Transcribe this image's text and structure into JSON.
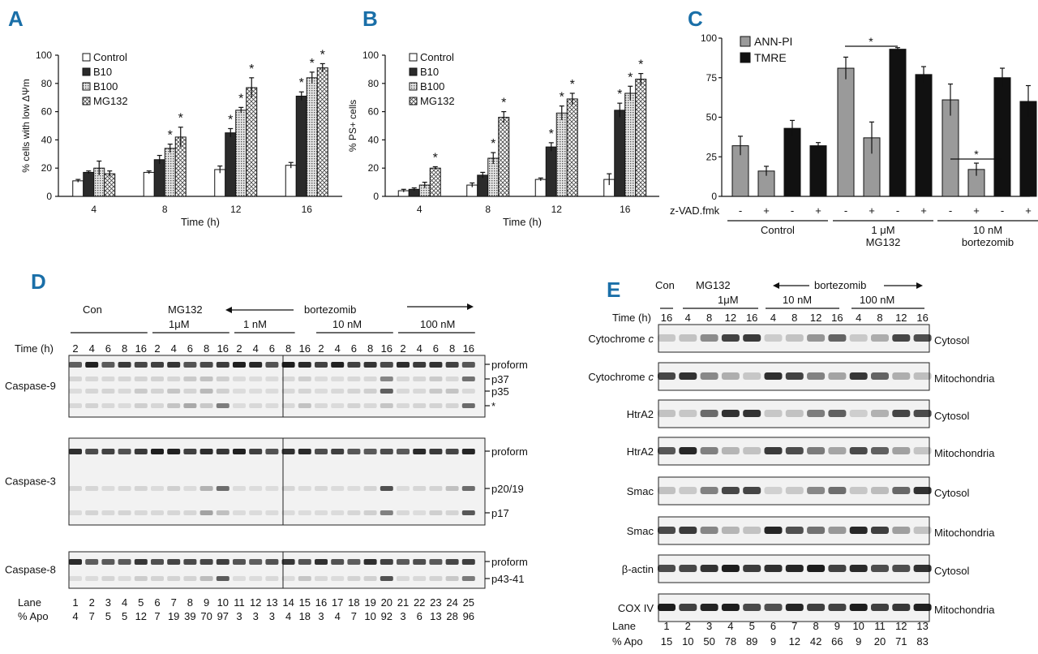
{
  "colors": {
    "panel_label": "#1a6fa8",
    "bar_dark": "#2b2b2b",
    "bar_gray": "#9a9a9a",
    "bar_black": "#111111"
  },
  "panel_labels": [
    "A",
    "B",
    "C",
    "D",
    "E"
  ],
  "chart_data": [
    {
      "id": "A",
      "type": "bar",
      "title": "",
      "xlabel": "Time (h)",
      "ylabel": "% cells with low ΔΨm",
      "ylim": [
        0,
        100
      ],
      "yticks": [
        "0",
        "20",
        "40",
        "60",
        "80",
        "100"
      ],
      "categories": [
        "4",
        "8",
        "12",
        "16"
      ],
      "series": [
        {
          "name": "Control",
          "values": [
            11,
            17,
            19,
            22
          ],
          "errors": [
            1,
            1,
            2.5,
            2
          ]
        },
        {
          "name": "B10",
          "values": [
            17,
            26,
            45,
            71
          ],
          "errors": [
            1,
            3,
            3,
            3
          ]
        },
        {
          "name": "B100",
          "values": [
            20,
            34,
            61,
            84
          ],
          "errors": [
            5,
            3,
            2,
            4
          ]
        },
        {
          "name": "MG132",
          "values": [
            16,
            42,
            77,
            91
          ],
          "errors": [
            2,
            7,
            7,
            3
          ]
        }
      ],
      "significance": [
        [],
        [
          "*",
          "*"
        ],
        [
          "*",
          "*",
          "*"
        ],
        [
          "*",
          "*",
          "*"
        ]
      ],
      "significance_label": "*"
    },
    {
      "id": "B",
      "type": "bar",
      "title": "",
      "xlabel": "Time (h)",
      "ylabel": "% PS+ cells",
      "ylim": [
        0,
        100
      ],
      "yticks": [
        "0",
        "20",
        "40",
        "60",
        "80",
        "100"
      ],
      "categories": [
        "4",
        "8",
        "12",
        "16"
      ],
      "series": [
        {
          "name": "Control",
          "values": [
            4,
            8,
            12,
            12
          ],
          "errors": [
            1,
            1.5,
            1,
            4
          ]
        },
        {
          "name": "B10",
          "values": [
            5,
            15,
            35,
            61
          ],
          "errors": [
            1,
            2,
            3,
            5
          ]
        },
        {
          "name": "B100",
          "values": [
            8,
            27,
            59,
            73
          ],
          "errors": [
            2,
            4,
            5,
            5
          ]
        },
        {
          "name": "MG132",
          "values": [
            20,
            56,
            69,
            83
          ],
          "errors": [
            1,
            4,
            4,
            4
          ]
        }
      ],
      "significance": [
        [
          "*"
        ],
        [
          "*",
          "*"
        ],
        [
          "*",
          "*",
          "*"
        ],
        [
          "*",
          "*",
          "*"
        ]
      ],
      "significance_label": "*"
    },
    {
      "id": "C",
      "type": "bar",
      "title": "",
      "xlabel": "",
      "ylabel": "",
      "ylim": [
        0,
        100
      ],
      "yticks": [
        "0",
        "25",
        "50",
        "75",
        "100"
      ],
      "legend": [
        "ANN-PI",
        "TMRE"
      ],
      "zvad_label": "z-VAD.fmk",
      "signs": [
        "-",
        "+",
        "-",
        "+"
      ],
      "groups": [
        {
          "label": "Control",
          "sublabel": "",
          "ann_pi": [
            32,
            16
          ],
          "tmre": [
            43,
            32
          ],
          "ann_err": [
            6,
            3
          ],
          "tmre_err": [
            5,
            2
          ]
        },
        {
          "label": "1 μM",
          "sublabel": "MG132",
          "ann_pi": [
            81,
            37
          ],
          "tmre": [
            93,
            77
          ],
          "ann_err": [
            7,
            10
          ],
          "tmre_err": [
            1,
            5
          ]
        },
        {
          "label": "10 nM",
          "sublabel": "bortezomib",
          "ann_pi": [
            61,
            17
          ],
          "tmre": [
            75,
            60
          ],
          "ann_err": [
            10,
            4
          ],
          "tmre_err": [
            6,
            10
          ]
        }
      ],
      "significance_label": "*"
    }
  ],
  "panel_d": {
    "con": "Con",
    "mg132": "MG132",
    "mg_dose": "1μM",
    "bortezomib": "bortezomib",
    "doses": [
      "1 nM",
      "10 nM",
      "100 nM"
    ],
    "time_label": "Time (h)",
    "times": [
      "2",
      "4",
      "6",
      "8",
      "16",
      "2",
      "4",
      "6",
      "8",
      "16",
      "2",
      "4",
      "6",
      "8",
      "16",
      "2",
      "4",
      "6",
      "8",
      "16",
      "2",
      "4",
      "6",
      "8",
      "16"
    ],
    "blots": [
      {
        "name": "Caspase-9",
        "bands": [
          "proform",
          "p37",
          "p35",
          "*"
        ]
      },
      {
        "name": "Caspase-3",
        "bands": [
          "proform",
          "p20/19",
          "p17"
        ]
      },
      {
        "name": "Caspase-8",
        "bands": [
          "proform",
          "p43-41"
        ]
      }
    ],
    "lane_label": "Lane",
    "lanes": [
      "1",
      "2",
      "3",
      "4",
      "5",
      "6",
      "7",
      "8",
      "9",
      "10",
      "11",
      "12",
      "13",
      "14",
      "15",
      "16",
      "17",
      "18",
      "19",
      "20",
      "21",
      "22",
      "23",
      "24",
      "25"
    ],
    "apo_label": "% Apo",
    "apo": [
      "4",
      "7",
      "5",
      "5",
      "12",
      "7",
      "19",
      "39",
      "70",
      "97",
      "3",
      "3",
      "3",
      "4",
      "18",
      "3",
      "4",
      "7",
      "10",
      "92",
      "3",
      "6",
      "13",
      "28",
      "96"
    ]
  },
  "panel_e": {
    "con": "Con",
    "mg132": "MG132",
    "mg_dose": "1μM",
    "bortezomib": "bortezomib",
    "doses": [
      "10 nM",
      "100 nM"
    ],
    "time_label": "Time (h)",
    "times": [
      "16",
      "4",
      "8",
      "12",
      "16",
      "4",
      "8",
      "12",
      "16",
      "4",
      "8",
      "12",
      "16"
    ],
    "blots": [
      {
        "name": "Cytochrome",
        "italic": "c",
        "fraction": "Cytosol"
      },
      {
        "name": "Cytochrome",
        "italic": "c",
        "fraction": "Mitochondria"
      },
      {
        "name": "HtrA2",
        "italic": "",
        "fraction": "Cytosol"
      },
      {
        "name": "HtrA2",
        "italic": "",
        "fraction": "Mitochondria"
      },
      {
        "name": "Smac",
        "italic": "",
        "fraction": "Cytosol"
      },
      {
        "name": "Smac",
        "italic": "",
        "fraction": "Mitochondria"
      },
      {
        "name": "β-actin",
        "italic": "",
        "fraction": "Cytosol"
      },
      {
        "name": "COX IV",
        "italic": "",
        "fraction": "Mitochondria"
      }
    ],
    "lane_label": "Lane",
    "lanes": [
      "1",
      "2",
      "3",
      "4",
      "5",
      "6",
      "7",
      "8",
      "9",
      "10",
      "11",
      "12",
      "13"
    ],
    "apo_label": "% Apo",
    "apo": [
      "15",
      "10",
      "50",
      "78",
      "89",
      "9",
      "12",
      "42",
      "66",
      "9",
      "20",
      "71",
      "83"
    ]
  }
}
